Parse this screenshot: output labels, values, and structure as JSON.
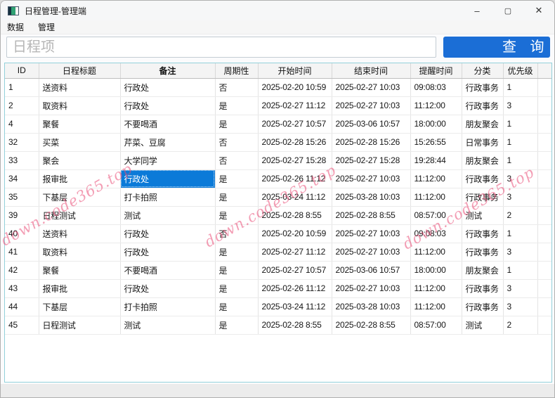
{
  "window": {
    "title": "日程管理-管理端",
    "controls": {
      "minimize": "–",
      "maximize": "▢",
      "close": "✕"
    }
  },
  "menu": {
    "items": [
      {
        "label": "数据"
      },
      {
        "label": "管理"
      }
    ]
  },
  "search": {
    "placeholder": "日程项",
    "value": "",
    "button_label": "查 询"
  },
  "watermark": {
    "text": "down.code365.top"
  },
  "colors": {
    "accent_blue": "#1b6ed6",
    "selection_blue": "#0b7ad8",
    "table_border_teal": "#93d1db",
    "watermark_pink": "#e94d76"
  },
  "table": {
    "columns": [
      {
        "label": "ID",
        "bold": false
      },
      {
        "label": "日程标题",
        "bold": false
      },
      {
        "label": "备注",
        "bold": true
      },
      {
        "label": "周期性",
        "bold": false
      },
      {
        "label": "开始时间",
        "bold": false
      },
      {
        "label": "结束时间",
        "bold": false
      },
      {
        "label": "提醒时间",
        "bold": false
      },
      {
        "label": "分类",
        "bold": false
      },
      {
        "label": "优先级",
        "bold": false
      }
    ],
    "rows": [
      [
        "1",
        "送资料",
        "行政处",
        "否",
        "2025-02-20 10:59",
        "2025-02-27 10:03",
        "09:08:03",
        "行政事务",
        "1"
      ],
      [
        "2",
        "取资料",
        "行政处",
        "是",
        "2025-02-27 11:12",
        "2025-02-27 10:03",
        "11:12:00",
        "行政事务",
        "3"
      ],
      [
        "4",
        "聚餐",
        "不要喝酒",
        "是",
        "2025-02-27 10:57",
        "2025-03-06 10:57",
        "18:00:00",
        "朋友聚会",
        "1"
      ],
      [
        "32",
        "买菜",
        "芹菜、豆腐",
        "否",
        "2025-02-28 15:26",
        "2025-02-28 15:26",
        "15:26:55",
        "日常事务",
        "1"
      ],
      [
        "33",
        "聚会",
        "大学同学",
        "否",
        "2025-02-27 15:28",
        "2025-02-27 15:28",
        "19:28:44",
        "朋友聚会",
        "1"
      ],
      [
        "34",
        "报审批",
        "行政处",
        "是",
        "2025-02-26 11:12",
        "2025-02-27 10:03",
        "11:12:00",
        "行政事务",
        "3"
      ],
      [
        "35",
        "下基层",
        "打卡拍照",
        "是",
        "2025-03-24 11:12",
        "2025-03-28 10:03",
        "11:12:00",
        "行政事务",
        "3"
      ],
      [
        "39",
        "日程测试",
        "测试",
        "是",
        "2025-02-28 8:55",
        "2025-02-28 8:55",
        "08:57:00",
        "测试",
        "2"
      ],
      [
        "40",
        "送资料",
        "行政处",
        "否",
        "2025-02-20 10:59",
        "2025-02-27 10:03",
        "09:08:03",
        "行政事务",
        "1"
      ],
      [
        "41",
        "取资料",
        "行政处",
        "是",
        "2025-02-27 11:12",
        "2025-02-27 10:03",
        "11:12:00",
        "行政事务",
        "3"
      ],
      [
        "42",
        "聚餐",
        "不要喝酒",
        "是",
        "2025-02-27 10:57",
        "2025-03-06 10:57",
        "18:00:00",
        "朋友聚会",
        "1"
      ],
      [
        "43",
        "报审批",
        "行政处",
        "是",
        "2025-02-26 11:12",
        "2025-02-27 10:03",
        "11:12:00",
        "行政事务",
        "3"
      ],
      [
        "44",
        "下基层",
        "打卡拍照",
        "是",
        "2025-03-24 11:12",
        "2025-03-28 10:03",
        "11:12:00",
        "行政事务",
        "3"
      ],
      [
        "45",
        "日程测试",
        "测试",
        "是",
        "2025-02-28 8:55",
        "2025-02-28 8:55",
        "08:57:00",
        "测试",
        "2"
      ]
    ],
    "selected": {
      "row": 5,
      "col": 2
    }
  }
}
